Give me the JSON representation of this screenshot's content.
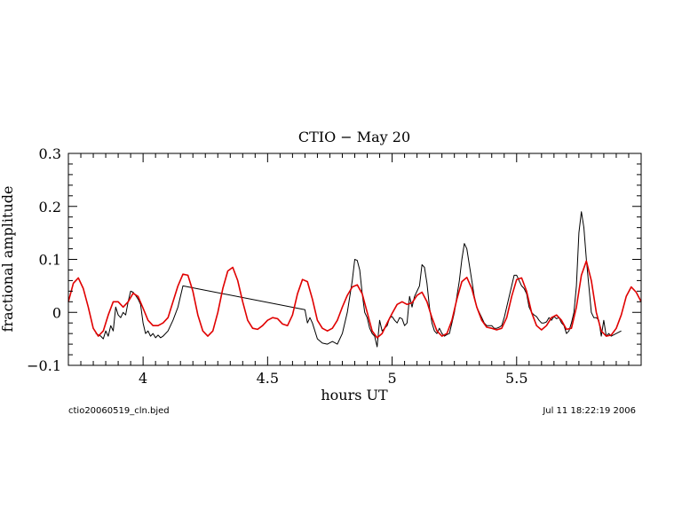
{
  "chart_data": {
    "type": "line",
    "title": "CTIO − May 20",
    "xlabel": "hours UT",
    "ylabel": "fractional amplitude",
    "xlim": [
      3.7,
      6.0
    ],
    "ylim": [
      -0.1,
      0.3
    ],
    "x_ticks": [
      4,
      4.5,
      5,
      5.5
    ],
    "x_tick_labels": [
      "4",
      "4.5",
      "5",
      "5.5"
    ],
    "y_ticks": [
      -0.1,
      0,
      0.1,
      0.2,
      0.3
    ],
    "y_tick_labels": [
      "−0.1",
      "0",
      "0.1",
      "0.2",
      "0.3"
    ],
    "grid": false,
    "footer_left": "ctio20060519_cln.bjed",
    "footer_right": "Jul 11 18:22:19 2006",
    "series": [
      {
        "color": "#000000",
        "points": [
          [
            3.81,
            -0.04
          ],
          [
            3.83,
            -0.045
          ],
          [
            3.84,
            -0.05
          ],
          [
            3.85,
            -0.035
          ],
          [
            3.86,
            -0.045
          ],
          [
            3.87,
            -0.025
          ],
          [
            3.88,
            -0.035
          ],
          [
            3.89,
            0.01
          ],
          [
            3.9,
            -0.005
          ],
          [
            3.91,
            -0.01
          ],
          [
            3.92,
            0.0
          ],
          [
            3.93,
            -0.005
          ],
          [
            3.94,
            0.02
          ],
          [
            3.95,
            0.04
          ],
          [
            3.96,
            0.038
          ],
          [
            3.97,
            0.032
          ],
          [
            3.98,
            0.025
          ],
          [
            3.99,
            0.015
          ],
          [
            4.0,
            -0.02
          ],
          [
            4.01,
            -0.04
          ],
          [
            4.02,
            -0.035
          ],
          [
            4.03,
            -0.045
          ],
          [
            4.04,
            -0.04
          ],
          [
            4.05,
            -0.048
          ],
          [
            4.06,
            -0.043
          ],
          [
            4.07,
            -0.048
          ],
          [
            4.08,
            -0.045
          ],
          [
            4.1,
            -0.035
          ],
          [
            4.12,
            -0.015
          ],
          [
            4.14,
            0.01
          ],
          [
            4.16,
            0.05
          ],
          [
            4.65,
            0.005
          ],
          [
            4.66,
            -0.02
          ],
          [
            4.67,
            -0.01
          ],
          [
            4.68,
            -0.02
          ],
          [
            4.7,
            -0.05
          ],
          [
            4.72,
            -0.058
          ],
          [
            4.74,
            -0.06
          ],
          [
            4.76,
            -0.055
          ],
          [
            4.78,
            -0.06
          ],
          [
            4.8,
            -0.04
          ],
          [
            4.82,
            0.0
          ],
          [
            4.84,
            0.06
          ],
          [
            4.85,
            0.1
          ],
          [
            4.86,
            0.098
          ],
          [
            4.87,
            0.08
          ],
          [
            4.88,
            0.035
          ],
          [
            4.89,
            0.0
          ],
          [
            4.9,
            -0.01
          ],
          [
            4.91,
            -0.03
          ],
          [
            4.92,
            -0.04
          ],
          [
            4.93,
            -0.045
          ],
          [
            4.94,
            -0.065
          ],
          [
            4.95,
            -0.015
          ],
          [
            4.96,
            -0.035
          ],
          [
            4.97,
            -0.03
          ],
          [
            4.98,
            -0.025
          ],
          [
            4.99,
            -0.01
          ],
          [
            5.0,
            -0.008
          ],
          [
            5.01,
            -0.015
          ],
          [
            5.02,
            -0.02
          ],
          [
            5.03,
            -0.01
          ],
          [
            5.04,
            -0.012
          ],
          [
            5.05,
            -0.025
          ],
          [
            5.06,
            -0.02
          ],
          [
            5.07,
            0.03
          ],
          [
            5.08,
            0.01
          ],
          [
            5.09,
            0.03
          ],
          [
            5.1,
            0.04
          ],
          [
            5.11,
            0.05
          ],
          [
            5.12,
            0.09
          ],
          [
            5.13,
            0.085
          ],
          [
            5.14,
            0.055
          ],
          [
            5.15,
            0.01
          ],
          [
            5.16,
            -0.02
          ],
          [
            5.17,
            -0.035
          ],
          [
            5.18,
            -0.04
          ],
          [
            5.19,
            -0.03
          ],
          [
            5.2,
            -0.04
          ],
          [
            5.21,
            -0.045
          ],
          [
            5.22,
            -0.042
          ],
          [
            5.23,
            -0.04
          ],
          [
            5.24,
            -0.02
          ],
          [
            5.25,
            0.0
          ],
          [
            5.26,
            0.03
          ],
          [
            5.27,
            0.06
          ],
          [
            5.28,
            0.1
          ],
          [
            5.29,
            0.13
          ],
          [
            5.3,
            0.12
          ],
          [
            5.31,
            0.09
          ],
          [
            5.32,
            0.06
          ],
          [
            5.33,
            0.03
          ],
          [
            5.34,
            0.01
          ],
          [
            5.35,
            0.0
          ],
          [
            5.36,
            -0.01
          ],
          [
            5.37,
            -0.02
          ],
          [
            5.38,
            -0.025
          ],
          [
            5.39,
            -0.025
          ],
          [
            5.4,
            -0.025
          ],
          [
            5.41,
            -0.03
          ],
          [
            5.42,
            -0.03
          ],
          [
            5.43,
            -0.028
          ],
          [
            5.44,
            -0.025
          ],
          [
            5.45,
            -0.01
          ],
          [
            5.46,
            0.01
          ],
          [
            5.47,
            0.03
          ],
          [
            5.48,
            0.05
          ],
          [
            5.49,
            0.07
          ],
          [
            5.5,
            0.07
          ],
          [
            5.51,
            0.06
          ],
          [
            5.52,
            0.05
          ],
          [
            5.53,
            0.045
          ],
          [
            5.54,
            0.035
          ],
          [
            5.55,
            0.01
          ],
          [
            5.56,
            0.0
          ],
          [
            5.57,
            -0.005
          ],
          [
            5.58,
            -0.008
          ],
          [
            5.59,
            -0.015
          ],
          [
            5.6,
            -0.02
          ],
          [
            5.61,
            -0.02
          ],
          [
            5.62,
            -0.018
          ],
          [
            5.63,
            -0.01
          ],
          [
            5.64,
            -0.015
          ],
          [
            5.65,
            -0.008
          ],
          [
            5.66,
            -0.012
          ],
          [
            5.67,
            -0.01
          ],
          [
            5.68,
            -0.02
          ],
          [
            5.69,
            -0.025
          ],
          [
            5.7,
            -0.04
          ],
          [
            5.71,
            -0.035
          ],
          [
            5.72,
            -0.02
          ],
          [
            5.73,
            0.0
          ],
          [
            5.74,
            0.05
          ],
          [
            5.75,
            0.15
          ],
          [
            5.76,
            0.19
          ],
          [
            5.77,
            0.16
          ],
          [
            5.78,
            0.1
          ],
          [
            5.79,
            0.05
          ],
          [
            5.8,
            0.0
          ],
          [
            5.81,
            -0.01
          ],
          [
            5.82,
            -0.01
          ],
          [
            5.83,
            -0.015
          ],
          [
            5.84,
            -0.045
          ],
          [
            5.85,
            -0.015
          ],
          [
            5.86,
            -0.045
          ],
          [
            5.87,
            -0.04
          ],
          [
            5.88,
            -0.045
          ],
          [
            5.9,
            -0.04
          ],
          [
            5.92,
            -0.035
          ]
        ]
      },
      {
        "color": "#e00000",
        "points": [
          [
            3.7,
            0.02
          ],
          [
            3.72,
            0.055
          ],
          [
            3.74,
            0.065
          ],
          [
            3.76,
            0.045
          ],
          [
            3.78,
            0.01
          ],
          [
            3.8,
            -0.03
          ],
          [
            3.82,
            -0.045
          ],
          [
            3.84,
            -0.035
          ],
          [
            3.86,
            -0.005
          ],
          [
            3.88,
            0.02
          ],
          [
            3.9,
            0.02
          ],
          [
            3.92,
            0.01
          ],
          [
            3.94,
            0.02
          ],
          [
            3.96,
            0.036
          ],
          [
            3.98,
            0.03
          ],
          [
            4.0,
            0.008
          ],
          [
            4.02,
            -0.015
          ],
          [
            4.04,
            -0.025
          ],
          [
            4.06,
            -0.025
          ],
          [
            4.08,
            -0.02
          ],
          [
            4.1,
            -0.01
          ],
          [
            4.12,
            0.02
          ],
          [
            4.14,
            0.05
          ],
          [
            4.16,
            0.072
          ],
          [
            4.18,
            0.07
          ],
          [
            4.2,
            0.04
          ],
          [
            4.22,
            -0.005
          ],
          [
            4.24,
            -0.035
          ],
          [
            4.26,
            -0.045
          ],
          [
            4.28,
            -0.035
          ],
          [
            4.3,
            0.0
          ],
          [
            4.32,
            0.045
          ],
          [
            4.34,
            0.078
          ],
          [
            4.36,
            0.085
          ],
          [
            4.38,
            0.06
          ],
          [
            4.4,
            0.02
          ],
          [
            4.42,
            -0.015
          ],
          [
            4.44,
            -0.03
          ],
          [
            4.46,
            -0.032
          ],
          [
            4.48,
            -0.025
          ],
          [
            4.5,
            -0.015
          ],
          [
            4.52,
            -0.01
          ],
          [
            4.54,
            -0.012
          ],
          [
            4.56,
            -0.022
          ],
          [
            4.58,
            -0.025
          ],
          [
            4.6,
            -0.005
          ],
          [
            4.62,
            0.035
          ],
          [
            4.64,
            0.062
          ],
          [
            4.66,
            0.058
          ],
          [
            4.68,
            0.025
          ],
          [
            4.7,
            -0.015
          ],
          [
            4.72,
            -0.03
          ],
          [
            4.74,
            -0.035
          ],
          [
            4.76,
            -0.03
          ],
          [
            4.78,
            -0.015
          ],
          [
            4.8,
            0.01
          ],
          [
            4.82,
            0.032
          ],
          [
            4.84,
            0.048
          ],
          [
            4.86,
            0.052
          ],
          [
            4.88,
            0.035
          ],
          [
            4.9,
            0.0
          ],
          [
            4.92,
            -0.035
          ],
          [
            4.94,
            -0.048
          ],
          [
            4.96,
            -0.04
          ],
          [
            4.98,
            -0.02
          ],
          [
            5.0,
            -0.002
          ],
          [
            5.02,
            0.015
          ],
          [
            5.04,
            0.02
          ],
          [
            5.06,
            0.015
          ],
          [
            5.08,
            0.018
          ],
          [
            5.1,
            0.032
          ],
          [
            5.12,
            0.038
          ],
          [
            5.14,
            0.02
          ],
          [
            5.16,
            -0.01
          ],
          [
            5.18,
            -0.035
          ],
          [
            5.2,
            -0.045
          ],
          [
            5.22,
            -0.04
          ],
          [
            5.24,
            -0.015
          ],
          [
            5.26,
            0.025
          ],
          [
            5.28,
            0.058
          ],
          [
            5.3,
            0.066
          ],
          [
            5.32,
            0.045
          ],
          [
            5.34,
            0.01
          ],
          [
            5.36,
            -0.015
          ],
          [
            5.38,
            -0.028
          ],
          [
            5.4,
            -0.03
          ],
          [
            5.42,
            -0.033
          ],
          [
            5.44,
            -0.03
          ],
          [
            5.46,
            -0.01
          ],
          [
            5.48,
            0.03
          ],
          [
            5.5,
            0.062
          ],
          [
            5.52,
            0.065
          ],
          [
            5.54,
            0.04
          ],
          [
            5.56,
            0.0
          ],
          [
            5.58,
            -0.025
          ],
          [
            5.6,
            -0.033
          ],
          [
            5.62,
            -0.025
          ],
          [
            5.64,
            -0.01
          ],
          [
            5.66,
            -0.005
          ],
          [
            5.68,
            -0.015
          ],
          [
            5.7,
            -0.032
          ],
          [
            5.72,
            -0.03
          ],
          [
            5.74,
            0.01
          ],
          [
            5.76,
            0.07
          ],
          [
            5.78,
            0.097
          ],
          [
            5.8,
            0.06
          ],
          [
            5.82,
            0.0
          ],
          [
            5.84,
            -0.035
          ],
          [
            5.86,
            -0.045
          ],
          [
            5.88,
            -0.043
          ],
          [
            5.9,
            -0.03
          ],
          [
            5.92,
            -0.005
          ],
          [
            5.94,
            0.03
          ],
          [
            5.96,
            0.048
          ],
          [
            5.98,
            0.038
          ],
          [
            6.0,
            0.02
          ]
        ]
      }
    ]
  }
}
